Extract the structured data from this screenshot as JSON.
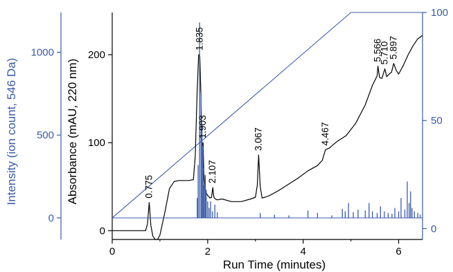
{
  "colors": {
    "black": "#000000",
    "blue": "#3a5aa8"
  },
  "chart_data": {
    "type": "line",
    "xlabel": "Run Time (minutes)",
    "xlim": [
      0,
      6.5
    ],
    "x_ticks": [
      0,
      2,
      4,
      6
    ],
    "left_outer_axis": {
      "label": "Intensity (ion count, 546 Da)",
      "color": "blue",
      "lim": [
        -130,
        1240
      ],
      "ticks": [
        0,
        500,
        1000
      ]
    },
    "left_inner_axis": {
      "label": "Absorbance (mAU, 220 nm)",
      "color": "black",
      "lim": [
        -10,
        248
      ],
      "ticks": [
        0,
        100,
        200
      ]
    },
    "right_axis": {
      "label": "",
      "color": "blue",
      "lim": [
        -5,
        100
      ],
      "ticks": [
        0,
        50,
        100
      ]
    },
    "series": [
      {
        "role": "gradient",
        "axis": "right",
        "color": "blue",
        "x": [
          0,
          5.0,
          6.5
        ],
        "y": [
          5,
          100,
          100
        ]
      },
      {
        "role": "absorbance",
        "axis": "left_inner",
        "color": "black",
        "x": [
          0,
          0.7,
          0.74,
          0.775,
          0.81,
          0.85,
          0.9,
          0.95,
          1.0,
          1.1,
          1.2,
          1.3,
          1.4,
          1.5,
          1.6,
          1.7,
          1.74,
          1.78,
          1.81,
          1.835,
          1.86,
          1.88,
          1.903,
          1.92,
          1.95,
          2.0,
          2.05,
          2.08,
          2.107,
          2.13,
          2.16,
          2.2,
          2.3,
          2.5,
          2.7,
          2.9,
          3.0,
          3.04,
          3.067,
          3.1,
          3.14,
          3.2,
          3.3,
          3.5,
          3.7,
          3.9,
          4.1,
          4.3,
          4.4,
          4.467,
          4.55,
          4.7,
          4.9,
          5.1,
          5.3,
          5.45,
          5.55,
          5.566,
          5.6,
          5.65,
          5.71,
          5.75,
          5.8,
          5.85,
          5.897,
          5.95,
          6.0,
          6.1,
          6.2,
          6.3,
          6.4,
          6.5
        ],
        "y": [
          0,
          0,
          8,
          32,
          6,
          -6,
          -10,
          -10,
          -5,
          20,
          48,
          56,
          57,
          57,
          57,
          58,
          85,
          160,
          200,
          198,
          150,
          96,
          100,
          65,
          45,
          40,
          37,
          38,
          49,
          38,
          36,
          35,
          36,
          33,
          33,
          36,
          38,
          52,
          86,
          50,
          37,
          38,
          40,
          46,
          53,
          60,
          68,
          74,
          80,
          92,
          94,
          101,
          108,
          122,
          143,
          165,
          176,
          187,
          174,
          173,
          184,
          175,
          178,
          180,
          190,
          182,
          178,
          188,
          200,
          210,
          218,
          222
        ]
      },
      {
        "role": "ion_count",
        "axis": "left_outer",
        "color": "blue",
        "x": [
          1.78,
          1.8,
          1.83,
          1.86,
          1.88,
          1.9,
          1.91,
          1.93,
          1.95,
          1.97,
          2.0,
          2.03,
          2.06,
          2.1,
          2.15,
          2.2,
          3.1,
          3.4,
          3.7,
          4.1,
          4.3,
          4.6,
          4.82,
          4.88,
          4.95,
          5.05,
          5.15,
          5.3,
          5.38,
          5.45,
          5.55,
          5.62,
          5.7,
          5.78,
          5.86,
          5.92,
          6.0,
          6.05,
          6.13,
          6.18,
          6.22,
          6.25,
          6.28,
          6.33,
          6.4,
          6.45
        ],
        "y": [
          120,
          320,
          1180,
          760,
          560,
          430,
          300,
          200,
          260,
          170,
          100,
          60,
          100,
          40,
          80,
          35,
          30,
          20,
          15,
          45,
          30,
          15,
          55,
          40,
          90,
          35,
          50,
          45,
          90,
          40,
          30,
          70,
          40,
          30,
          25,
          60,
          40,
          120,
          50,
          220,
          90,
          160,
          60,
          40,
          30,
          20
        ]
      }
    ],
    "annotations": [
      "0.775",
      "1.835",
      "1.903",
      "2.107",
      "3.067",
      "4.467",
      "5.566",
      "5.710",
      "5.897"
    ],
    "annotation_x": [
      0.775,
      1.835,
      1.903,
      2.107,
      3.067,
      4.467,
      5.566,
      5.71,
      5.897
    ],
    "annotation_y": [
      32,
      200,
      100,
      49,
      86,
      92,
      187,
      184,
      190
    ]
  }
}
